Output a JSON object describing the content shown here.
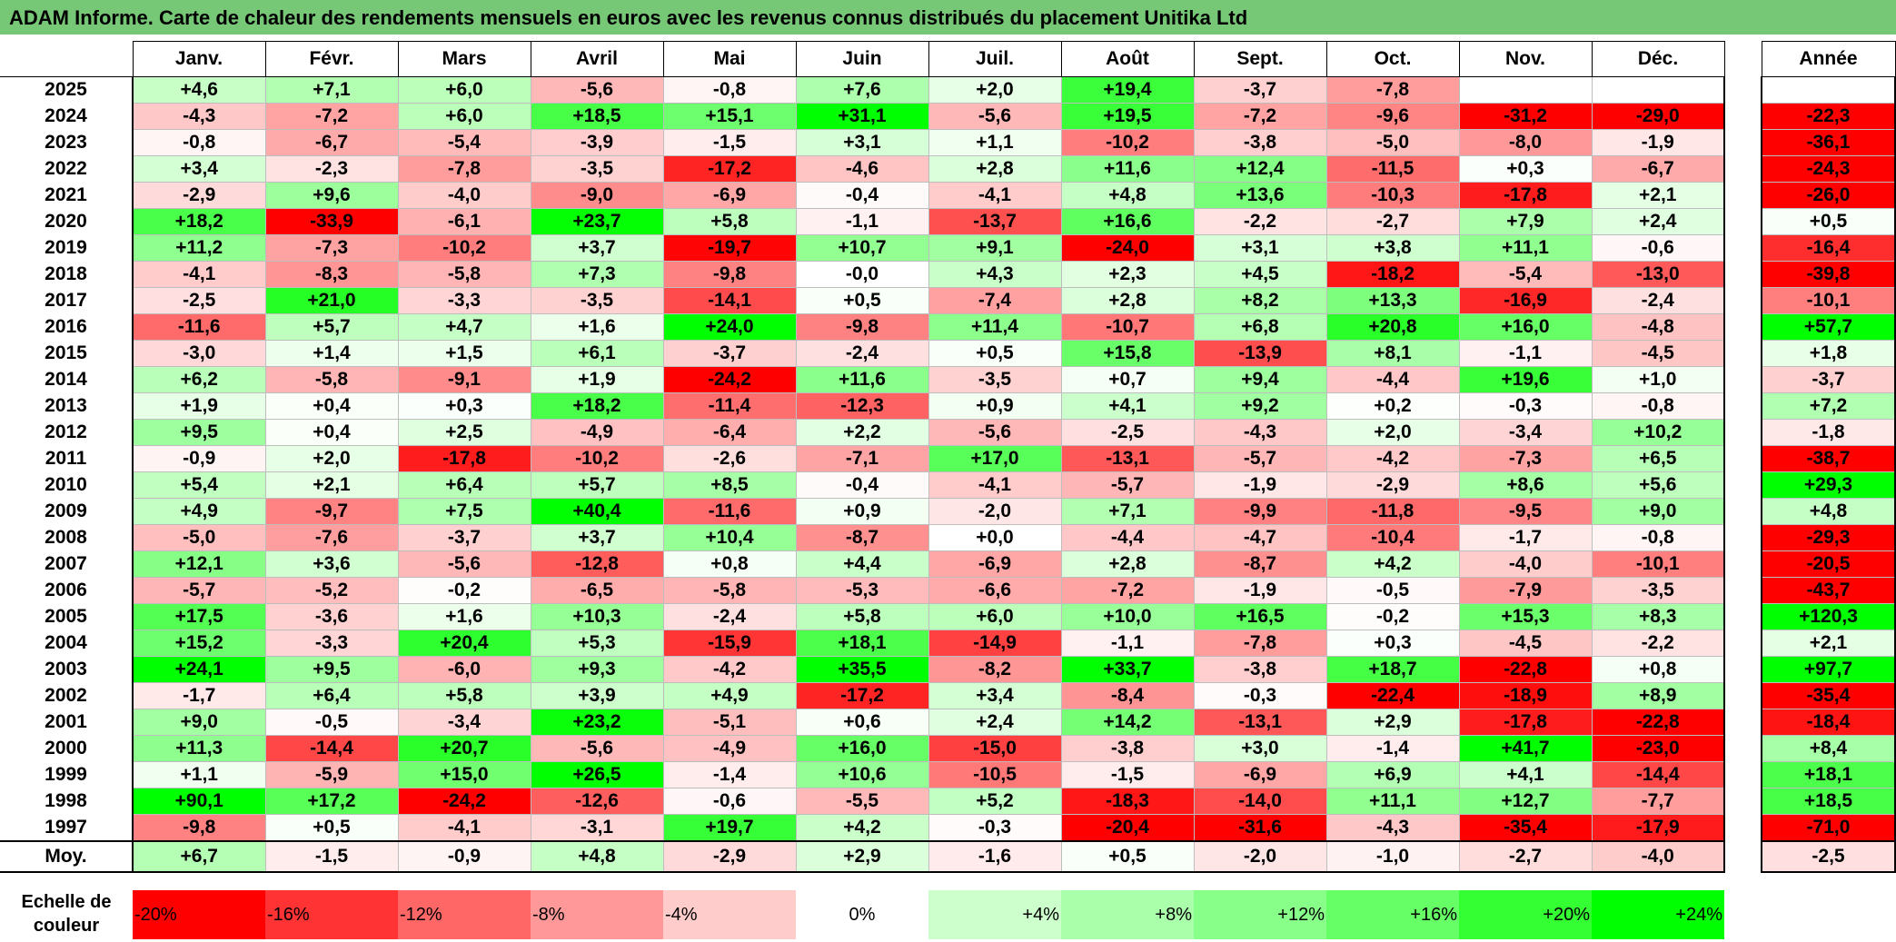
{
  "title": "ADAM Informe. Carte de chaleur des rendements mensuels en euros avec les revenus connus distribués du placement Unitika Ltd",
  "chart_data": {
    "type": "heatmap",
    "title": "ADAM Informe. Carte de chaleur des rendements mensuels en euros avec les revenus connus distribués du placement Unitika Ltd",
    "columns": [
      "Janv.",
      "Févr.",
      "Mars",
      "Avril",
      "Mai",
      "Juin",
      "Juil.",
      "Août",
      "Sept.",
      "Oct.",
      "Nov.",
      "Déc."
    ],
    "year_header": "Année",
    "rows": [
      {
        "year": "2025",
        "months": [
          "+4,6",
          "+7,1",
          "+6,0",
          "-5,6",
          "-0,8",
          "+7,6",
          "+2,0",
          "+19,4",
          "-3,7",
          "-7,8",
          "",
          ""
        ],
        "annual": ""
      },
      {
        "year": "2024",
        "months": [
          "-4,3",
          "-7,2",
          "+6,0",
          "+18,5",
          "+15,1",
          "+31,1",
          "-5,6",
          "+19,5",
          "-7,2",
          "-9,6",
          "-31,2",
          "-29,0"
        ],
        "annual": "-22,3"
      },
      {
        "year": "2023",
        "months": [
          "-0,8",
          "-6,7",
          "-5,4",
          "-3,9",
          "-1,5",
          "+3,1",
          "+1,1",
          "-10,2",
          "-3,8",
          "-5,0",
          "-8,0",
          "-1,9"
        ],
        "annual": "-36,1"
      },
      {
        "year": "2022",
        "months": [
          "+3,4",
          "-2,3",
          "-7,8",
          "-3,5",
          "-17,2",
          "-4,6",
          "+2,8",
          "+11,6",
          "+12,4",
          "-11,5",
          "+0,3",
          "-6,7"
        ],
        "annual": "-24,3"
      },
      {
        "year": "2021",
        "months": [
          "-2,9",
          "+9,6",
          "-4,0",
          "-9,0",
          "-6,9",
          "-0,4",
          "-4,1",
          "+4,8",
          "+13,6",
          "-10,3",
          "-17,8",
          "+2,1"
        ],
        "annual": "-26,0"
      },
      {
        "year": "2020",
        "months": [
          "+18,2",
          "-33,9",
          "-6,1",
          "+23,7",
          "+5,8",
          "-1,1",
          "-13,7",
          "+16,6",
          "-2,2",
          "-2,7",
          "+7,9",
          "+2,4"
        ],
        "annual": "+0,5"
      },
      {
        "year": "2019",
        "months": [
          "+11,2",
          "-7,3",
          "-10,2",
          "+3,7",
          "-19,7",
          "+10,7",
          "+9,1",
          "-24,0",
          "+3,1",
          "+3,8",
          "+11,1",
          "-0,6"
        ],
        "annual": "-16,4"
      },
      {
        "year": "2018",
        "months": [
          "-4,1",
          "-8,3",
          "-5,8",
          "+7,3",
          "-9,8",
          "-0,0",
          "+4,3",
          "+2,3",
          "+4,5",
          "-18,2",
          "-5,4",
          "-13,0"
        ],
        "annual": "-39,8"
      },
      {
        "year": "2017",
        "months": [
          "-2,5",
          "+21,0",
          "-3,3",
          "-3,5",
          "-14,1",
          "+0,5",
          "-7,4",
          "+2,8",
          "+8,2",
          "+13,3",
          "-16,9",
          "-2,4"
        ],
        "annual": "-10,1"
      },
      {
        "year": "2016",
        "months": [
          "-11,6",
          "+5,7",
          "+4,7",
          "+1,6",
          "+24,0",
          "-9,8",
          "+11,4",
          "-10,7",
          "+6,8",
          "+20,8",
          "+16,0",
          "-4,8"
        ],
        "annual": "+57,7"
      },
      {
        "year": "2015",
        "months": [
          "-3,0",
          "+1,4",
          "+1,5",
          "+6,1",
          "-3,7",
          "-2,4",
          "+0,5",
          "+15,8",
          "-13,9",
          "+8,1",
          "-1,1",
          "-4,5"
        ],
        "annual": "+1,8"
      },
      {
        "year": "2014",
        "months": [
          "+6,2",
          "-5,8",
          "-9,1",
          "+1,9",
          "-24,2",
          "+11,6",
          "-3,5",
          "+0,7",
          "+9,4",
          "-4,4",
          "+19,6",
          "+1,0"
        ],
        "annual": "-3,7"
      },
      {
        "year": "2013",
        "months": [
          "+1,9",
          "+0,4",
          "+0,3",
          "+18,2",
          "-11,4",
          "-12,3",
          "+0,9",
          "+4,1",
          "+9,2",
          "+0,2",
          "-0,3",
          "-0,8"
        ],
        "annual": "+7,2"
      },
      {
        "year": "2012",
        "months": [
          "+9,5",
          "+0,4",
          "+2,5",
          "-4,9",
          "-6,4",
          "+2,2",
          "-5,6",
          "-2,5",
          "-4,3",
          "+2,0",
          "-3,4",
          "+10,2"
        ],
        "annual": "-1,8"
      },
      {
        "year": "2011",
        "months": [
          "-0,9",
          "+2,0",
          "-17,8",
          "-10,2",
          "-2,6",
          "-7,1",
          "+17,0",
          "-13,1",
          "-5,7",
          "-4,2",
          "-7,3",
          "+6,5"
        ],
        "annual": "-38,7"
      },
      {
        "year": "2010",
        "months": [
          "+5,4",
          "+2,1",
          "+6,4",
          "+5,7",
          "+8,5",
          "-0,4",
          "-4,1",
          "-5,7",
          "-1,9",
          "-2,9",
          "+8,6",
          "+5,6"
        ],
        "annual": "+29,3"
      },
      {
        "year": "2009",
        "months": [
          "+4,9",
          "-9,7",
          "+7,5",
          "+40,4",
          "-11,6",
          "+0,9",
          "-2,0",
          "+7,1",
          "-9,9",
          "-11,8",
          "-9,5",
          "+9,0"
        ],
        "annual": "+4,8"
      },
      {
        "year": "2008",
        "months": [
          "-5,0",
          "-7,6",
          "-3,7",
          "+3,7",
          "+10,4",
          "-8,7",
          "+0,0",
          "-4,4",
          "-4,7",
          "-10,4",
          "-1,7",
          "-0,8"
        ],
        "annual": "-29,3"
      },
      {
        "year": "2007",
        "months": [
          "+12,1",
          "+3,6",
          "-5,6",
          "-12,8",
          "+0,8",
          "+4,4",
          "-6,9",
          "+2,8",
          "-8,7",
          "+4,2",
          "-4,0",
          "-10,1"
        ],
        "annual": "-20,5"
      },
      {
        "year": "2006",
        "months": [
          "-5,7",
          "-5,2",
          "-0,2",
          "-6,5",
          "-5,8",
          "-5,3",
          "-6,6",
          "-7,2",
          "-1,9",
          "-0,5",
          "-7,9",
          "-3,5"
        ],
        "annual": "-43,7"
      },
      {
        "year": "2005",
        "months": [
          "+17,5",
          "-3,6",
          "+1,6",
          "+10,3",
          "-2,4",
          "+5,8",
          "+6,0",
          "+10,0",
          "+16,5",
          "-0,2",
          "+15,3",
          "+8,3"
        ],
        "annual": "+120,3"
      },
      {
        "year": "2004",
        "months": [
          "+15,2",
          "-3,3",
          "+20,4",
          "+5,3",
          "-15,9",
          "+18,1",
          "-14,9",
          "-1,1",
          "-7,8",
          "+0,3",
          "-4,5",
          "-2,2"
        ],
        "annual": "+2,1"
      },
      {
        "year": "2003",
        "months": [
          "+24,1",
          "+9,5",
          "-6,0",
          "+9,3",
          "-4,2",
          "+35,5",
          "-8,2",
          "+33,7",
          "-3,8",
          "+18,7",
          "-22,8",
          "+0,8"
        ],
        "annual": "+97,7"
      },
      {
        "year": "2002",
        "months": [
          "-1,7",
          "+6,4",
          "+5,8",
          "+3,9",
          "+4,9",
          "-17,2",
          "+3,4",
          "-8,4",
          "-0,3",
          "-22,4",
          "-18,9",
          "+8,9"
        ],
        "annual": "-35,4"
      },
      {
        "year": "2001",
        "months": [
          "+9,0",
          "-0,5",
          "-3,4",
          "+23,2",
          "-5,1",
          "+0,6",
          "+2,4",
          "+14,2",
          "-13,1",
          "+2,9",
          "-17,8",
          "-22,8"
        ],
        "annual": "-18,4"
      },
      {
        "year": "2000",
        "months": [
          "+11,3",
          "-14,4",
          "+20,7",
          "-5,6",
          "-4,9",
          "+16,0",
          "-15,0",
          "-3,8",
          "+3,0",
          "-1,4",
          "+41,7",
          "-23,0"
        ],
        "annual": "+8,4"
      },
      {
        "year": "1999",
        "months": [
          "+1,1",
          "-5,9",
          "+15,0",
          "+26,5",
          "-1,4",
          "+10,6",
          "-10,5",
          "-1,5",
          "-6,9",
          "+6,9",
          "+4,1",
          "-14,4"
        ],
        "annual": "+18,1"
      },
      {
        "year": "1998",
        "months": [
          "+90,1",
          "+17,2",
          "-24,2",
          "-12,6",
          "-0,6",
          "-5,5",
          "+5,2",
          "-18,3",
          "-14,0",
          "+11,1",
          "+12,7",
          "-7,7"
        ],
        "annual": "+18,5"
      },
      {
        "year": "1997",
        "months": [
          "-9,8",
          "+0,5",
          "-4,1",
          "-3,1",
          "+19,7",
          "+4,2",
          "-0,3",
          "-20,4",
          "-31,6",
          "-4,3",
          "-35,4",
          "-17,9"
        ],
        "annual": "-71,0"
      }
    ],
    "average": {
      "label": "Moy.",
      "months": [
        "+6,7",
        "-1,5",
        "-0,9",
        "+4,8",
        "-2,9",
        "+2,9",
        "-1,6",
        "+0,5",
        "-2,0",
        "-1,0",
        "-2,7",
        "-4,0"
      ],
      "annual": "-2,5"
    },
    "color_scale": {
      "label": "Echelle de couleur",
      "stops": [
        {
          "label": "-20%",
          "value": -20,
          "color": "#ff0000"
        },
        {
          "label": "-16%",
          "value": -16,
          "color": "#ff3333"
        },
        {
          "label": "-12%",
          "value": -12,
          "color": "#ff6666"
        },
        {
          "label": "-8%",
          "value": -8,
          "color": "#ff9999"
        },
        {
          "label": "-4%",
          "value": -4,
          "color": "#ffcccc"
        },
        {
          "label": "0%",
          "value": 0,
          "color": "#ffffff"
        },
        {
          "label": "+4%",
          "value": 4,
          "color": "#ccffcc"
        },
        {
          "label": "+8%",
          "value": 8,
          "color": "#aaffaa"
        },
        {
          "label": "+12%",
          "value": 12,
          "color": "#88ff88"
        },
        {
          "label": "+16%",
          "value": 16,
          "color": "#66ff66"
        },
        {
          "label": "+20%",
          "value": 20,
          "color": "#33ff33"
        },
        {
          "label": "+24%",
          "value": 24,
          "color": "#00ff00"
        }
      ]
    }
  }
}
